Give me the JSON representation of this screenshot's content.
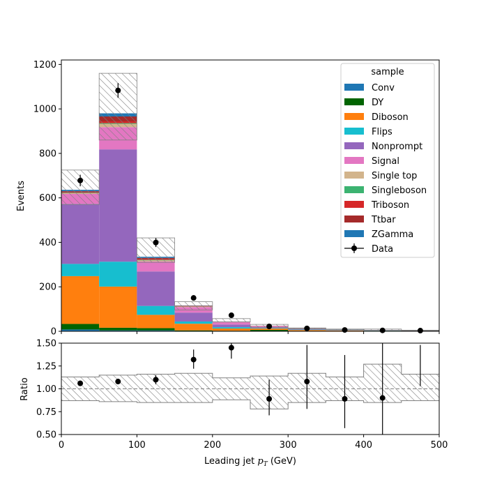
{
  "chart_data": {
    "type": "bar",
    "stacked": true,
    "bin_edges": [
      0,
      50,
      100,
      150,
      200,
      250,
      300,
      350,
      400,
      450,
      500
    ],
    "xlabel": "Leading jet  $p_T$ (GeV)",
    "xlabel_text": "Leading jet",
    "xlabel_sym": "p",
    "xlabel_sub": "T",
    "xlabel_unit": "(GeV)",
    "xlim": [
      0,
      500
    ],
    "xticks": [
      "0",
      "100",
      "200",
      "300",
      "400",
      "500"
    ],
    "main": {
      "ylabel": "Events",
      "ylim": [
        0,
        1220
      ],
      "yticks": [
        "0",
        "200",
        "400",
        "600",
        "800",
        "1000",
        "1200"
      ]
    },
    "ratio": {
      "ylabel": "Ratio",
      "ylim": [
        0.5,
        1.5
      ],
      "yticks": [
        "0.50",
        "0.75",
        "1.00",
        "1.25",
        "1.50"
      ],
      "values": [
        1.06,
        1.08,
        1.1,
        1.32,
        1.45,
        0.89,
        1.08,
        0.89,
        0.9,
        null
      ],
      "err_low": [
        0.03,
        0.03,
        0.05,
        0.1,
        0.12,
        0.18,
        0.3,
        0.32,
        0.4,
        null
      ],
      "err_high": [
        0.03,
        0.03,
        0.05,
        0.11,
        0.12,
        0.21,
        0.4,
        0.48,
        0.6,
        0.45
      ],
      "err_base": [
        null,
        null,
        null,
        null,
        null,
        null,
        null,
        null,
        null,
        1.03
      ],
      "unc_low": [
        0.87,
        0.86,
        0.85,
        0.85,
        0.88,
        0.78,
        0.85,
        0.87,
        0.85,
        0.87
      ],
      "unc_high": [
        1.13,
        1.15,
        1.16,
        1.17,
        1.12,
        1.14,
        1.17,
        1.13,
        1.27,
        1.16
      ]
    },
    "legend_title": "sample",
    "legend_position": "upper right",
    "series": [
      {
        "name": "Conv",
        "color": "#1f77b4",
        "values": [
          8,
          4,
          4,
          1,
          0.5,
          0.3,
          0.2,
          0.1,
          0.05,
          0.05
        ]
      },
      {
        "name": "DY",
        "color": "#006400",
        "values": [
          25,
          12,
          10,
          3,
          2,
          6,
          0.5,
          0.5,
          0.3,
          0.3
        ]
      },
      {
        "name": "Diboson",
        "color": "#ff7f0e",
        "values": [
          215,
          185,
          60,
          30,
          10,
          6,
          5,
          3,
          2,
          1
        ]
      },
      {
        "name": "Flips",
        "color": "#17becf",
        "values": [
          55,
          112,
          40,
          10,
          6,
          2,
          2,
          1,
          1,
          0.5
        ]
      },
      {
        "name": "Nonprompt",
        "color": "#9467bd",
        "values": [
          270,
          505,
          155,
          40,
          12,
          4,
          2,
          1,
          1,
          0.5
        ]
      },
      {
        "name": "Signal",
        "color": "#e377c2",
        "values": [
          45,
          100,
          45,
          25,
          10,
          5,
          3,
          2,
          1,
          1
        ]
      },
      {
        "name": "Single top",
        "color": "#d2b48c",
        "values": [
          3,
          15,
          5,
          2,
          1,
          0.5,
          0.5,
          0.3,
          0.2,
          0.1
        ]
      },
      {
        "name": "Singleboson",
        "color": "#3cb371",
        "values": [
          2,
          3,
          2,
          0.5,
          0.3,
          0.3,
          0.2,
          0.1,
          0.1,
          0.1
        ]
      },
      {
        "name": "Triboson",
        "color": "#d62728",
        "values": [
          2,
          8,
          3,
          1,
          0.5,
          0.3,
          0.2,
          0.1,
          0.1,
          0.1
        ]
      },
      {
        "name": "Ttbar",
        "color": "#a52a2a",
        "values": [
          5,
          22,
          6,
          2,
          1,
          0.5,
          0.3,
          0.2,
          0.2,
          0.1
        ]
      },
      {
        "name": "ZGamma",
        "color": "#1f77b4",
        "values": [
          6,
          14,
          5,
          1,
          0.5,
          0.3,
          0.2,
          0.1,
          0.1,
          0.1
        ]
      }
    ],
    "mc_unc_band": {
      "low": [
        570,
        860,
        310,
        96,
        42,
        17,
        11,
        7,
        5,
        3
      ],
      "high": [
        725,
        1160,
        420,
        133,
        57,
        31,
        15,
        10,
        10,
        5
      ]
    },
    "data": {
      "name": "Data",
      "color": "#000000",
      "values": [
        678,
        1083,
        399,
        150,
        72,
        22,
        13,
        6,
        4,
        3
      ],
      "errors": [
        26,
        33,
        20,
        12,
        8,
        5,
        4,
        2.5,
        2,
        1.7
      ]
    }
  }
}
